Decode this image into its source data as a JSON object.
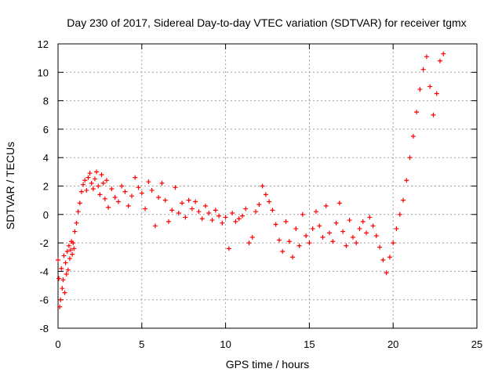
{
  "chart_data": {
    "type": "scatter",
    "title": "Day 230 of 2017, Sidereal Day-to-day VTEC variation (SDTVAR) for receiver tgmx",
    "xlabel": "GPS time / hours",
    "ylabel": "SDTVAR / TECUs",
    "xlim": [
      0,
      25
    ],
    "ylim": [
      -8,
      12
    ],
    "xticks": [
      0,
      5,
      10,
      15,
      20,
      25
    ],
    "yticks": [
      -8,
      -6,
      -4,
      -2,
      0,
      2,
      4,
      6,
      8,
      10,
      12
    ],
    "grid": true,
    "marker": "plus",
    "color": "#ff0000",
    "series": [
      {
        "name": "SDTVAR",
        "x": [
          0.0,
          0.05,
          0.1,
          0.15,
          0.2,
          0.25,
          0.3,
          0.35,
          0.4,
          0.45,
          0.5,
          0.55,
          0.6,
          0.65,
          0.7,
          0.75,
          0.8,
          0.85,
          0.9,
          0.95,
          1.0,
          1.1,
          1.2,
          1.3,
          1.4,
          1.5,
          1.6,
          1.7,
          1.8,
          1.9,
          2.0,
          2.1,
          2.2,
          2.3,
          2.4,
          2.5,
          2.6,
          2.7,
          2.8,
          2.9,
          3.0,
          3.2,
          3.4,
          3.6,
          3.8,
          4.0,
          4.2,
          4.4,
          4.6,
          4.8,
          5.0,
          5.2,
          5.4,
          5.6,
          5.8,
          6.0,
          6.2,
          6.4,
          6.6,
          6.8,
          7.0,
          7.2,
          7.4,
          7.6,
          7.8,
          8.0,
          8.2,
          8.4,
          8.6,
          8.8,
          9.0,
          9.2,
          9.4,
          9.6,
          9.8,
          10.0,
          10.2,
          10.4,
          10.6,
          10.8,
          11.0,
          11.2,
          11.4,
          11.6,
          11.8,
          12.0,
          12.2,
          12.4,
          12.6,
          12.8,
          13.0,
          13.2,
          13.4,
          13.6,
          13.8,
          14.0,
          14.2,
          14.4,
          14.6,
          14.8,
          15.0,
          15.2,
          15.4,
          15.6,
          15.8,
          16.0,
          16.2,
          16.4,
          16.6,
          16.8,
          17.0,
          17.2,
          17.4,
          17.6,
          17.8,
          18.0,
          18.2,
          18.4,
          18.6,
          18.8,
          19.0,
          19.2,
          19.4,
          19.6,
          19.8,
          20.0,
          20.2,
          20.4,
          20.6,
          20.8,
          21.0,
          21.2,
          21.4,
          21.6,
          21.8,
          22.0,
          22.2,
          22.4,
          22.6,
          22.8,
          23.0
        ],
        "y": [
          -3.2,
          -4.5,
          -6.5,
          -6.0,
          -3.8,
          -5.2,
          -4.6,
          -2.9,
          -5.5,
          -3.4,
          -4.2,
          -2.6,
          -3.9,
          -2.2,
          -3.1,
          -2.5,
          -1.9,
          -2.8,
          -2.0,
          -2.4,
          -1.2,
          -0.6,
          0.2,
          0.8,
          1.6,
          2.1,
          2.4,
          1.7,
          2.6,
          2.9,
          2.2,
          1.8,
          2.5,
          3.0,
          2.0,
          1.4,
          2.8,
          2.2,
          1.1,
          2.4,
          0.5,
          1.8,
          1.2,
          0.9,
          2.0,
          1.6,
          0.6,
          1.3,
          2.6,
          1.9,
          1.5,
          0.4,
          2.3,
          1.7,
          -0.8,
          1.2,
          2.2,
          1.0,
          -0.5,
          0.3,
          1.9,
          0.1,
          0.8,
          -0.2,
          1.0,
          0.4,
          0.9,
          0.2,
          -0.3,
          0.6,
          0.1,
          -0.4,
          0.3,
          -0.1,
          -0.6,
          -0.2,
          -2.4,
          0.1,
          -0.5,
          -0.3,
          -0.1,
          0.4,
          -2.0,
          -1.6,
          0.2,
          0.7,
          2.0,
          1.4,
          0.9,
          0.3,
          -0.7,
          -1.8,
          -2.6,
          -0.5,
          -1.9,
          -3.0,
          -1.0,
          -2.2,
          0.0,
          -1.5,
          -2.0,
          -1.0,
          0.2,
          -0.8,
          -1.6,
          0.6,
          -1.3,
          -1.9,
          -0.6,
          0.8,
          -1.2,
          -2.2,
          -0.4,
          -1.6,
          -2.0,
          -1.0,
          -0.5,
          -1.3,
          -0.2,
          -0.8,
          -1.5,
          -2.3,
          -3.2,
          -4.1,
          -3.0,
          -2.0,
          -1.0,
          0.0,
          1.0,
          2.4,
          4.0,
          5.5,
          7.2,
          8.8,
          10.2,
          11.1,
          9.0,
          7.0,
          8.5,
          10.8,
          11.3
        ]
      }
    ]
  }
}
